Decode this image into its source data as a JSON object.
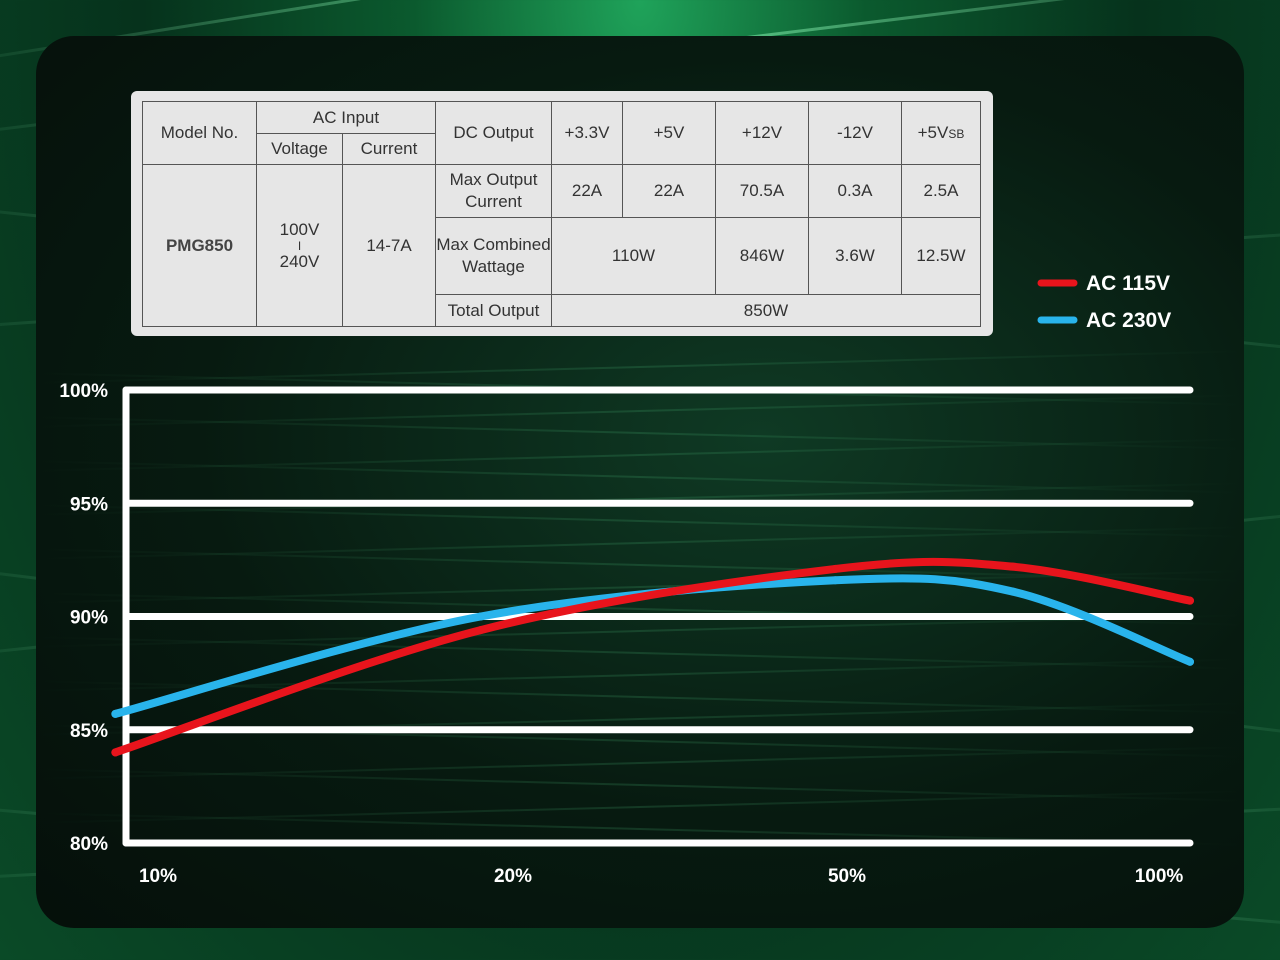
{
  "spec_table": {
    "headers": {
      "model_no": "Model No.",
      "ac_input": "AC Input",
      "voltage": "Voltage",
      "current": "Current",
      "dc_output": "DC Output",
      "rails": [
        "+3.3V",
        "+5V",
        "+12V",
        "-12V",
        "+5V"
      ],
      "rail_sb_suffix": "SB"
    },
    "model": "PMG850",
    "voltage_top": "100V",
    "voltage_sep": "I",
    "voltage_bottom": "240V",
    "current_value": "14-7A",
    "max_output_label": "Max Output Current",
    "max_output_values": [
      "22A",
      "22A",
      "70.5A",
      "0.3A",
      "2.5A"
    ],
    "max_combined_label": "Max Combined Wattage",
    "combined_3v3_5v": "110W",
    "combined_12v": "846W",
    "combined_neg12v": "3.6W",
    "combined_5vsb": "12.5W",
    "total_output_label": "Total Output",
    "total_output_value": "850W"
  },
  "chart_data": {
    "type": "line",
    "categories": [
      "10%",
      "20%",
      "50%",
      "100%"
    ],
    "y_ticks": [
      "100%",
      "95%",
      "90%",
      "85%",
      "80%"
    ],
    "ylim": [
      80,
      100
    ],
    "grid": true,
    "legend_position": "top-right",
    "series": [
      {
        "name": "AC 115V",
        "color": "#e8141c",
        "points": [
          [
            0.0,
            84.0
          ],
          [
            1.0,
            89.4
          ],
          [
            2.0,
            92.1
          ],
          [
            2.5,
            92.2
          ],
          [
            3.0,
            90.7
          ]
        ]
      },
      {
        "name": "AC 230V",
        "color": "#29b4ec",
        "points": [
          [
            0.0,
            85.7
          ],
          [
            1.0,
            90.0
          ],
          [
            2.0,
            91.6
          ],
          [
            2.5,
            91.1
          ],
          [
            3.0,
            88.0
          ]
        ]
      }
    ]
  }
}
